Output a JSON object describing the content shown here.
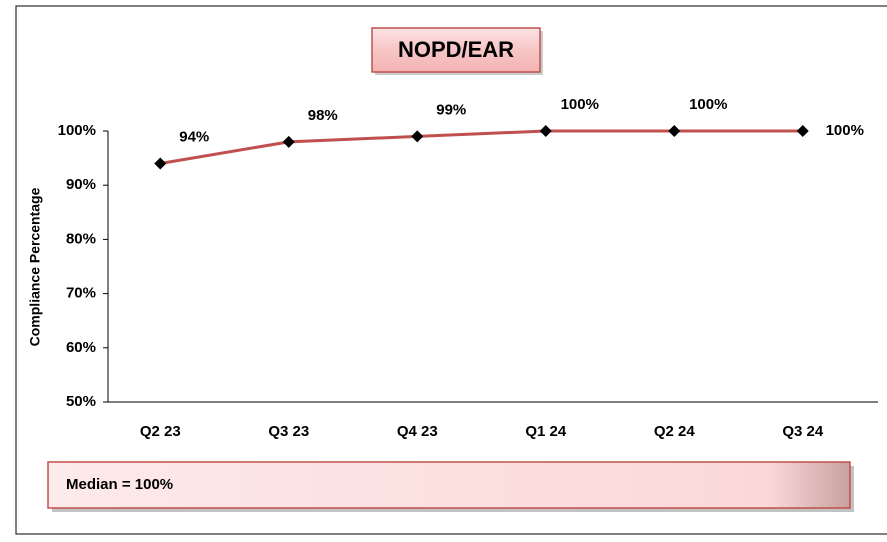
{
  "chart_data": {
    "type": "line",
    "title": "NOPD/EAR",
    "y_label": "Compliance Percentage",
    "annotation": "Median = 100%",
    "categories": [
      "Q2 23",
      "Q3 23",
      "Q4 23",
      "Q1 24",
      "Q2 24",
      "Q3 24"
    ],
    "series": [
      {
        "name": "NOPD/EAR",
        "color": "#c0504d",
        "values": [
          94,
          98,
          99,
          100,
          100,
          100
        ],
        "value_labels": [
          "94%",
          "98%",
          "99%",
          "100%",
          "100%",
          "100%"
        ]
      }
    ],
    "ylim": [
      50,
      100
    ],
    "yticks": [
      {
        "value": 50,
        "label": "50%"
      },
      {
        "value": 60,
        "label": "60%"
      },
      {
        "value": 70,
        "label": "70%"
      },
      {
        "value": 80,
        "label": "80%"
      },
      {
        "value": 90,
        "label": "90%"
      },
      {
        "value": 100,
        "label": "100%"
      }
    ],
    "grid": false
  }
}
